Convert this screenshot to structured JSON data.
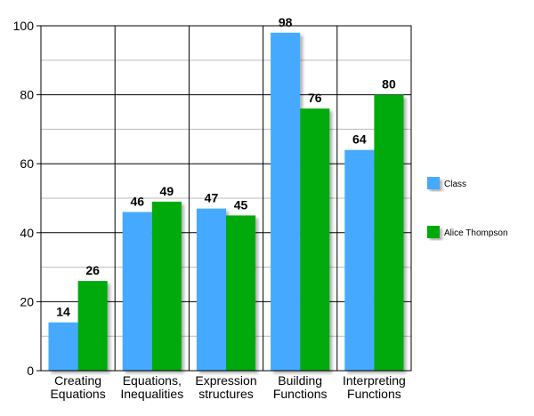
{
  "chart_data": {
    "type": "bar",
    "categories": [
      [
        "Creating",
        "Equations"
      ],
      [
        "Equations,",
        "Inequalities"
      ],
      [
        "Expression",
        "structures"
      ],
      [
        "Building",
        "Functions"
      ],
      [
        "Interpreting",
        "Functions"
      ]
    ],
    "series": [
      {
        "name": "Class",
        "values": [
          14,
          46,
          47,
          98,
          64
        ],
        "color": "#44aaff"
      },
      {
        "name": "Alice Thompson",
        "values": [
          26,
          49,
          45,
          76,
          80
        ],
        "color": "#00aa11"
      }
    ],
    "ylim": [
      0,
      100
    ],
    "yticks": [
      0,
      20,
      40,
      60,
      80,
      100
    ],
    "grid": true,
    "legend": "right",
    "title": "",
    "xlabel": "",
    "ylabel": ""
  }
}
